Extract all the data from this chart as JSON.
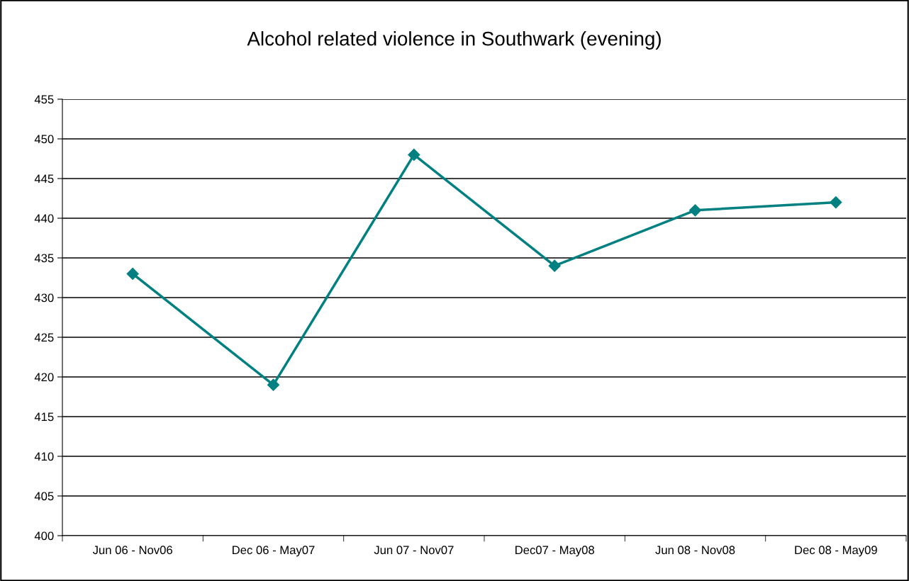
{
  "chart_data": {
    "type": "line",
    "title": "Alcohol related violence in Southwark (evening)",
    "categories": [
      "Jun 06 - Nov06",
      "Dec 06 - May07",
      "Jun 07 - Nov07",
      "Dec07 - May08",
      "Jun 08 - Nov08",
      "Dec 08 - May09"
    ],
    "series": [
      {
        "color": "#008080",
        "values": [
          433,
          419,
          448,
          434,
          441,
          442
        ]
      }
    ],
    "ylim": [
      400,
      455
    ],
    "yticks": [
      400,
      405,
      410,
      415,
      420,
      425,
      430,
      435,
      440,
      445,
      450,
      455
    ],
    "grid": "y",
    "marker": "diamond",
    "line_style": "solid",
    "legend": false
  }
}
